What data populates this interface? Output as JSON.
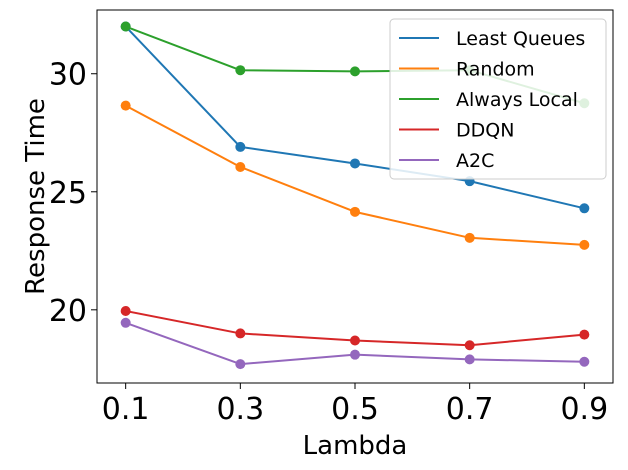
{
  "chart_data": {
    "type": "line",
    "title": "",
    "xlabel": "Lambda",
    "ylabel": "Response Time",
    "x": [
      0.1,
      0.3,
      0.5,
      0.7,
      0.9
    ],
    "x_tick_labels": [
      "0.1",
      "0.3",
      "0.5",
      "0.7",
      "0.9"
    ],
    "y_ticks": [
      20,
      25,
      30
    ],
    "y_tick_labels": [
      "20",
      "25",
      "30"
    ],
    "xlim": [
      0.05,
      0.95
    ],
    "ylim": [
      16.9,
      32.7
    ],
    "grid": false,
    "legend_position": "top-right",
    "series": [
      {
        "name": "Least Queues",
        "color": "#1f77b4",
        "values": [
          32.0,
          26.9,
          26.2,
          25.45,
          24.3
        ]
      },
      {
        "name": "Random",
        "color": "#ff7f0e",
        "values": [
          28.65,
          26.05,
          24.15,
          23.05,
          22.75
        ]
      },
      {
        "name": "Always Local",
        "color": "#2ca02c",
        "values": [
          32.0,
          30.15,
          30.1,
          30.15,
          28.75
        ]
      },
      {
        "name": "DDQN",
        "color": "#d62728",
        "values": [
          19.95,
          19.0,
          18.7,
          18.5,
          18.95
        ]
      },
      {
        "name": "A2C",
        "color": "#9467bd",
        "values": [
          19.45,
          17.7,
          18.1,
          17.9,
          17.8
        ]
      }
    ]
  }
}
